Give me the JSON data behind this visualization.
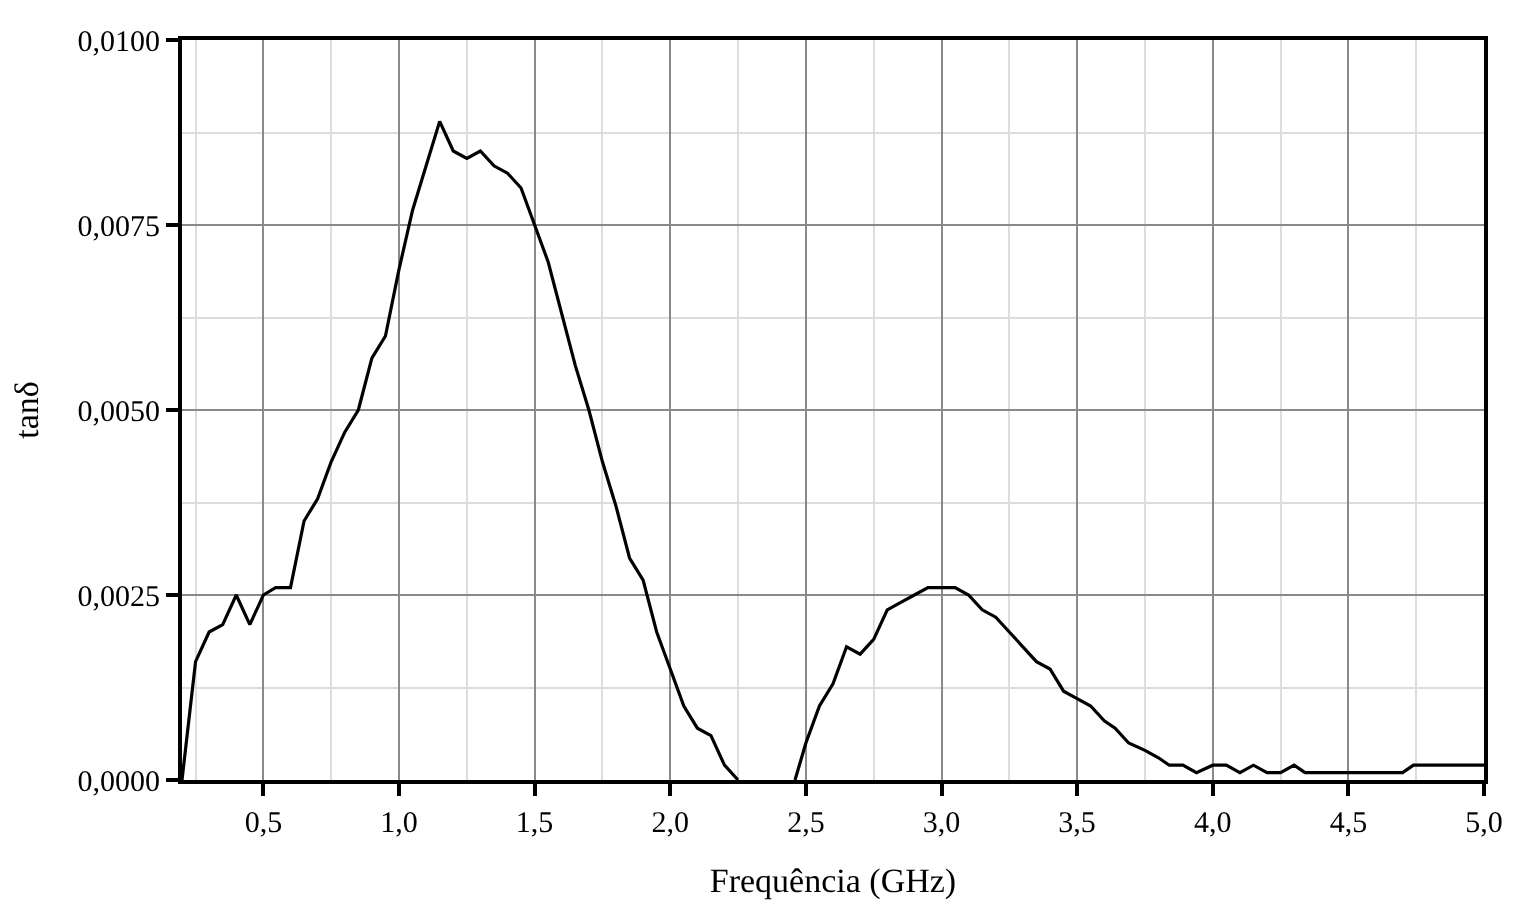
{
  "chart_data": {
    "type": "line",
    "xlabel": "Frequência (GHz)",
    "ylabel": "tanδ",
    "xlim": [
      0.2,
      5.0
    ],
    "xticks": [
      {
        "value": 0.5,
        "label": "0,5"
      },
      {
        "value": 1.0,
        "label": "1,0"
      },
      {
        "value": 1.5,
        "label": "1,5"
      },
      {
        "value": 2.0,
        "label": "2,0"
      },
      {
        "value": 2.5,
        "label": "2,5"
      },
      {
        "value": 3.0,
        "label": "3,0"
      },
      {
        "value": 3.5,
        "label": "3,5"
      },
      {
        "value": 4.0,
        "label": "4,0"
      },
      {
        "value": 4.5,
        "label": "4,5"
      },
      {
        "value": 5.0,
        "label": "5,0"
      }
    ],
    "ylim": [
      0,
      0.01
    ],
    "yticks": [
      {
        "value": 0,
        "label": "0,0000"
      },
      {
        "value": 0.0025,
        "label": "0,0025"
      },
      {
        "value": 0.005,
        "label": "0,0050"
      },
      {
        "value": 0.0075,
        "label": "0,0075"
      },
      {
        "value": 0.01,
        "label": "0,0100"
      }
    ],
    "grid": true,
    "legend": false,
    "marker": "none",
    "line_style": "solid",
    "series": [
      {
        "color": "#000000",
        "x": [
          0.2,
          0.25,
          0.3,
          0.35,
          0.4,
          0.45,
          0.5,
          0.545,
          0.6,
          0.65,
          0.7,
          0.75,
          0.8,
          0.85,
          0.9,
          0.95,
          1.0,
          1.05,
          1.1,
          1.15,
          1.2,
          1.25,
          1.3,
          1.35,
          1.4,
          1.45,
          1.5,
          1.55,
          1.6,
          1.65,
          1.7,
          1.75,
          1.8,
          1.85,
          1.9,
          1.95,
          2.0,
          2.05,
          2.1,
          2.15,
          2.2,
          2.25,
          2.35,
          2.46,
          2.5,
          2.55,
          2.6,
          2.65,
          2.7,
          2.75,
          2.8,
          2.85,
          2.9,
          2.95,
          3.05,
          3.1,
          3.15,
          3.2,
          3.25,
          3.3,
          3.35,
          3.4,
          3.45,
          3.5,
          3.55,
          3.6,
          3.64,
          3.69,
          3.75,
          3.8,
          3.84,
          3.89,
          3.94,
          4.0,
          4.05,
          4.1,
          4.15,
          4.2,
          4.25,
          4.3,
          4.34,
          4.7,
          4.74,
          5.0
        ],
        "values": [
          0,
          0.0016,
          0.002,
          0.0021,
          0.0025,
          0.0021,
          0.0025,
          0.0026,
          0.0026,
          0.0035,
          0.0038,
          0.0043,
          0.0047,
          0.005,
          0.0057,
          0.006,
          0.0069,
          0.0077,
          0.0083,
          0.0089,
          0.0085,
          0.0084,
          0.0085,
          0.0083,
          0.0082,
          0.008,
          0.0075,
          0.007,
          0.0063,
          0.0056,
          0.005,
          0.0043,
          0.0037,
          0.003,
          0.0027,
          0.002,
          0.0015,
          0.001,
          0.0007,
          0.0006,
          0.0002,
          0,
          null,
          0,
          0.0005,
          0.001,
          0.0013,
          0.0018,
          0.0017,
          0.0019,
          0.0023,
          0.0024,
          0.0025,
          0.0026,
          0.0026,
          0.0025,
          0.0023,
          0.0022,
          0.002,
          0.0018,
          0.0016,
          0.0015,
          0.0012,
          0.0011,
          0.001,
          0.0008,
          0.0007,
          0.0005,
          0.0004,
          0.0003,
          0.0002,
          0.0002,
          0.0001,
          0.0002,
          0.0002,
          0.0001,
          0.0002,
          0.0001,
          0.0001,
          0.0002,
          0.0001,
          0.0001,
          0.0002,
          0.0002
        ]
      }
    ]
  }
}
